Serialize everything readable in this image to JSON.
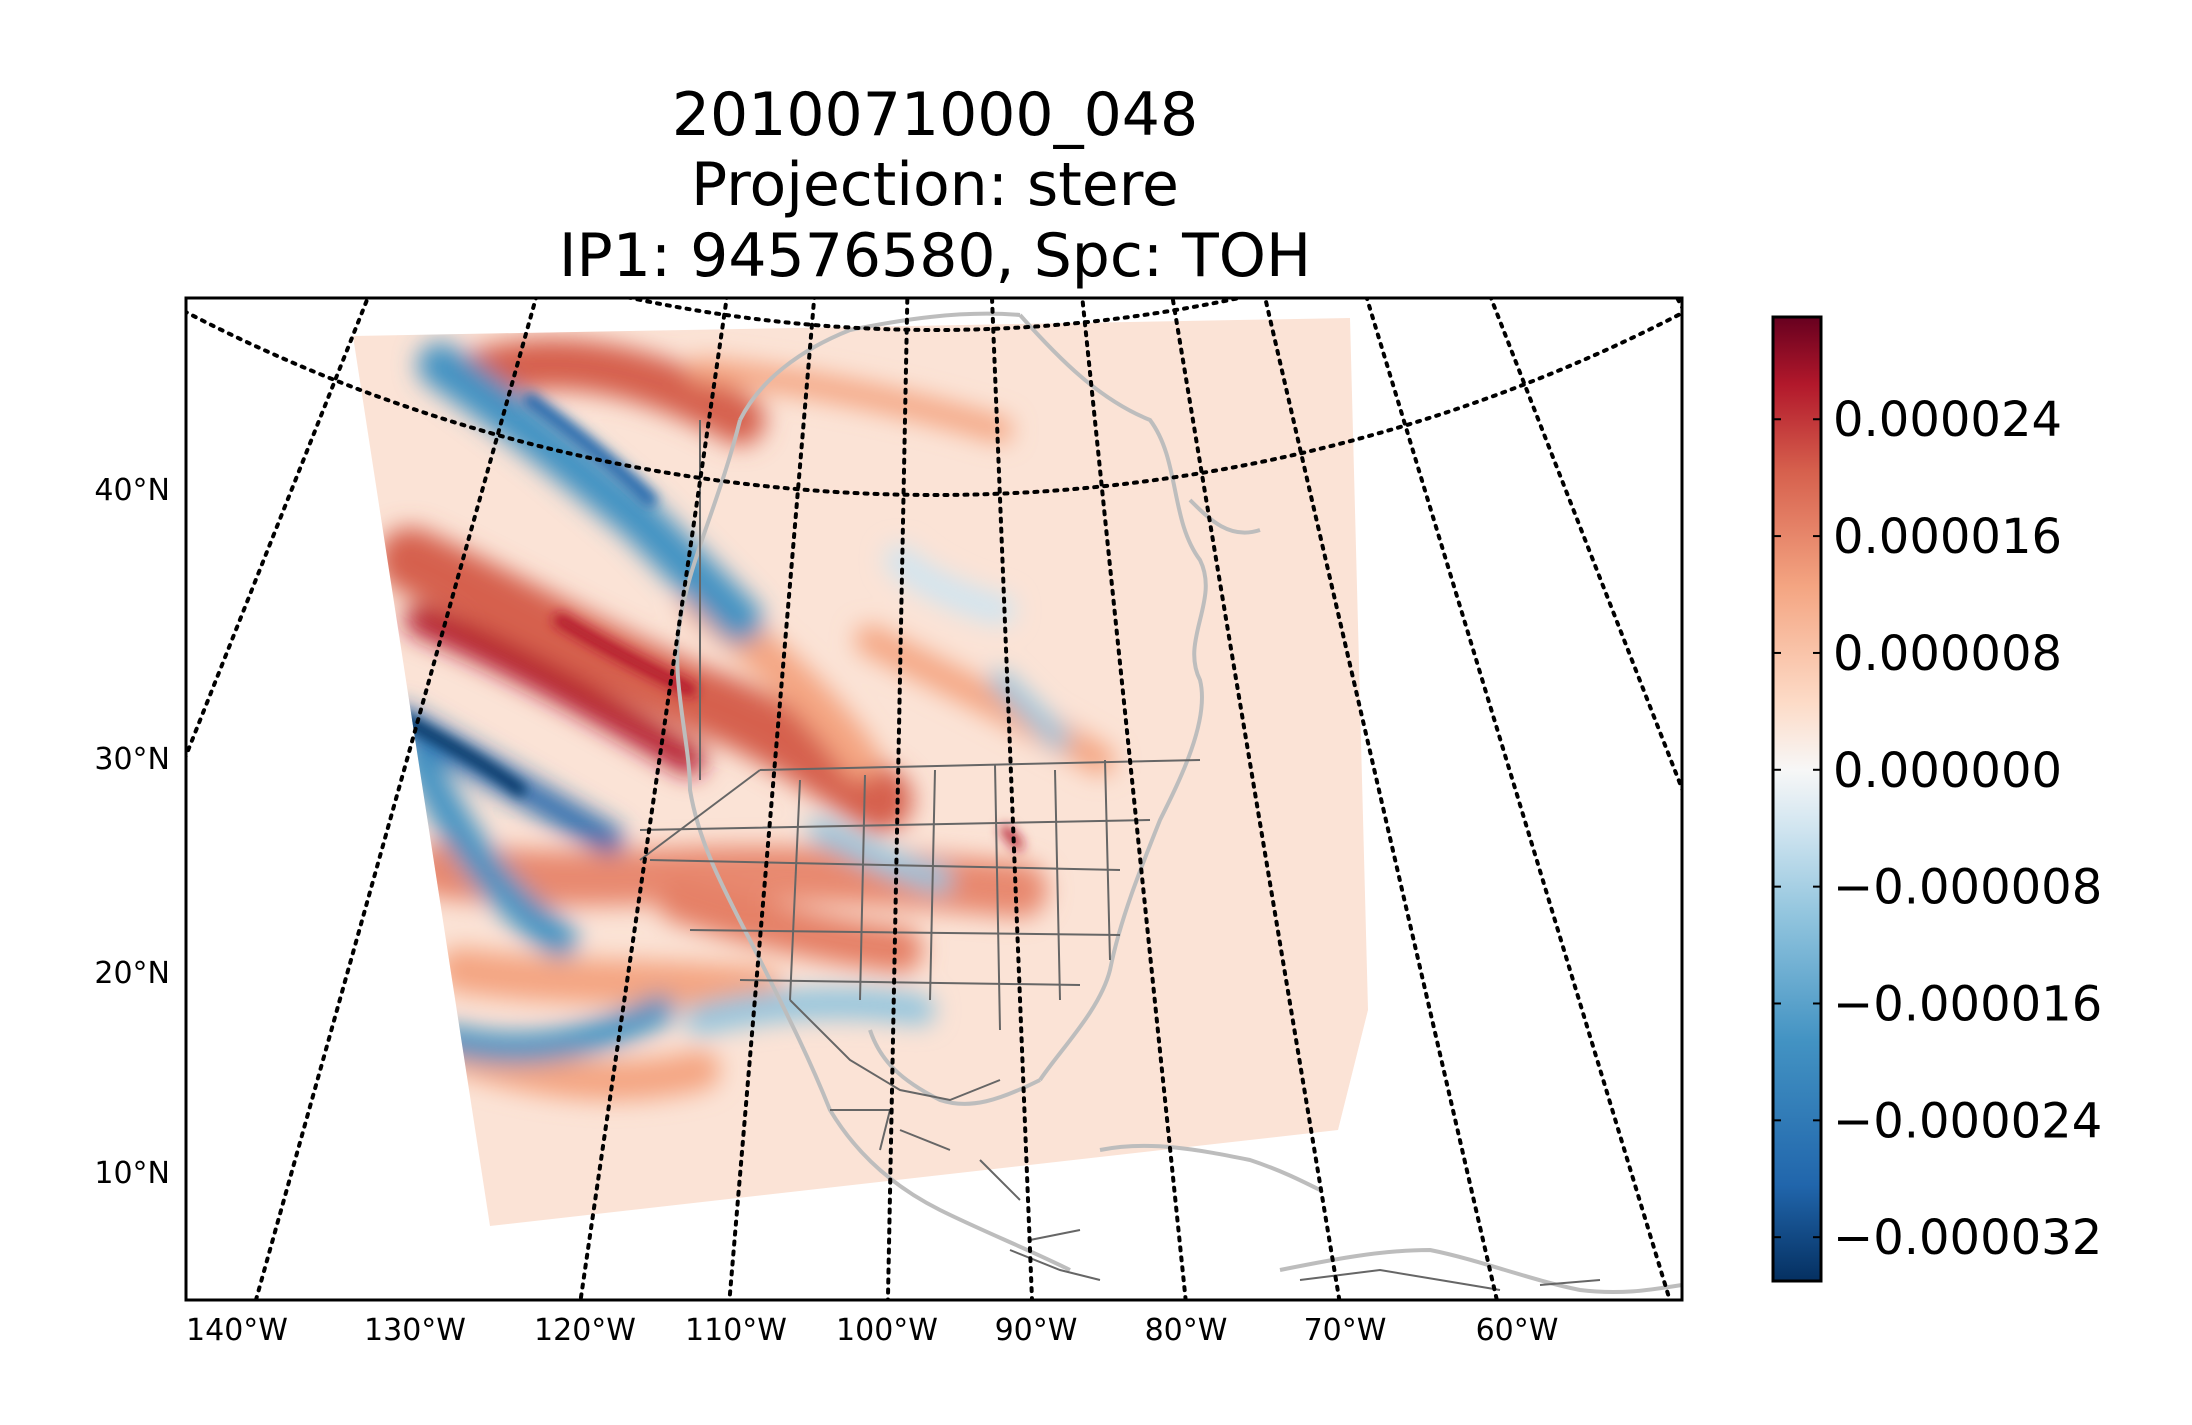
{
  "map": {
    "title_lines": [
      "2010071000_048",
      "Projection: stere",
      "IP1: 94576580, Spc: TOH"
    ],
    "projection": "stere",
    "lat_labels": [
      "40°N",
      "30°N",
      "20°N",
      "10°N"
    ],
    "lon_labels": [
      "140°W",
      "130°W",
      "120°W",
      "110°W",
      "100°W",
      "90°W",
      "80°W",
      "70°W",
      "60°W"
    ],
    "colormap": "RdBu_r",
    "colors": {
      "dark_red": "#67001f",
      "red": "#b2182b",
      "mid_red": "#d6604d",
      "light_red": "#f4a582",
      "pale_red": "#fddbc7",
      "white": "#f7f7f7",
      "pale_blue": "#d1e5f0",
      "light_blue": "#92c5de",
      "mid_blue": "#4393c3",
      "blue": "#2166ac",
      "dark_blue": "#053061",
      "border_lines": "#666666",
      "coastline": "#bdbdbd",
      "grid": "#000000"
    }
  },
  "colorbar": {
    "tick_labels": [
      "0.000024",
      "0.000016",
      "0.000008",
      "0.000000",
      "−0.000008",
      "−0.000016",
      "−0.000024",
      "−0.000032"
    ],
    "tick_values": [
      2.4e-05,
      1.6e-05,
      8e-06,
      0.0,
      -8e-06,
      -1.6e-05,
      -2.4e-05,
      -3.2e-05
    ],
    "range": [
      -3.5e-05,
      3.1e-05
    ]
  }
}
